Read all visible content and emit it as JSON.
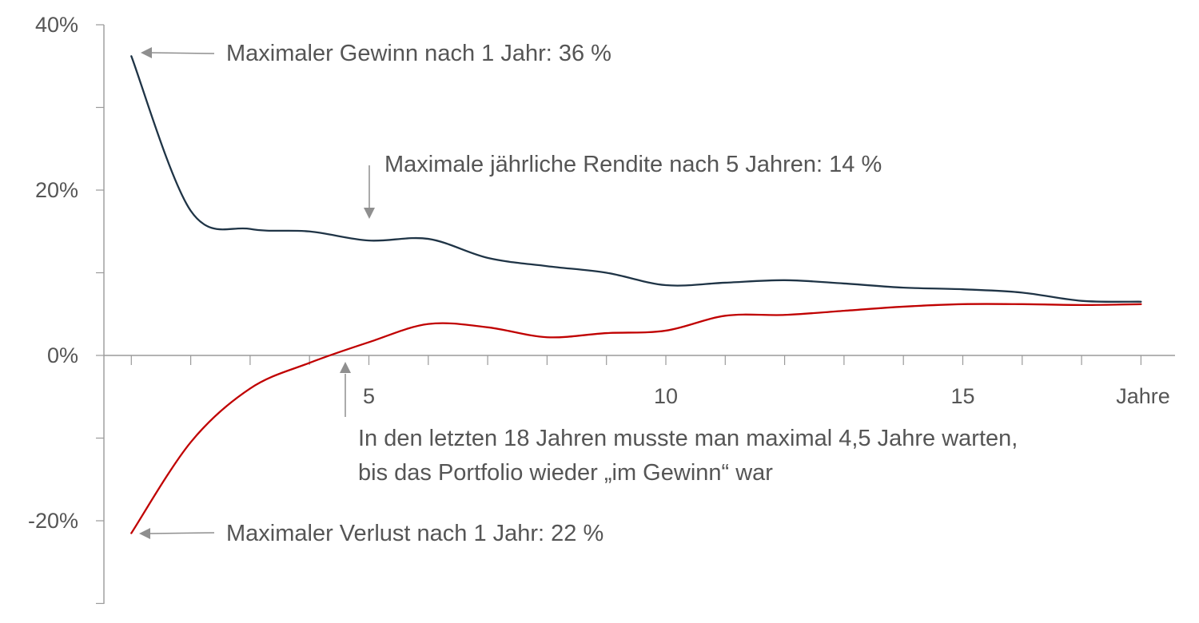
{
  "chart_data": {
    "type": "line",
    "title": "",
    "xlabel": "Jahre",
    "ylabel": "",
    "xlim": [
      0,
      18.4
    ],
    "ylim": [
      -30,
      40
    ],
    "x_ticks": [
      5,
      10,
      15
    ],
    "x_tick_labels": [
      "5",
      "10",
      "15"
    ],
    "y_ticks": [
      40,
      20,
      0,
      -20
    ],
    "y_tick_labels": [
      "40%",
      "20%",
      "0%",
      "-20%"
    ],
    "grid": false,
    "legend": "none",
    "series": [
      {
        "color": "#1f3446",
        "x": [
          1,
          2,
          3,
          4,
          5,
          6,
          7,
          8,
          9,
          10,
          11,
          12,
          13,
          14,
          15,
          16,
          17,
          18
        ],
        "y": [
          36.2,
          17.5,
          15.3,
          15.0,
          13.9,
          14.1,
          11.8,
          10.8,
          10.0,
          8.5,
          8.8,
          9.1,
          8.7,
          8.2,
          8.0,
          7.6,
          6.6,
          6.5
        ]
      },
      {
        "color": "#c00000",
        "x": [
          1,
          2,
          3,
          4,
          5,
          6,
          7,
          8,
          9,
          10,
          11,
          12,
          13,
          14,
          15,
          16,
          17,
          18
        ],
        "y": [
          -21.5,
          -10.5,
          -4.0,
          -0.9,
          1.6,
          3.8,
          3.4,
          2.2,
          2.7,
          3.0,
          4.8,
          4.9,
          5.4,
          5.9,
          6.2,
          6.2,
          6.1,
          6.2
        ]
      }
    ],
    "annotations": [
      {
        "id": "max-gain",
        "text": "Maximaler Gewinn nach 1 Jahr: 36 %"
      },
      {
        "id": "max-return-5y",
        "text": "Maximale jährliche Rendite nach 5 Jahren: 14 %"
      },
      {
        "id": "wait-time",
        "lines": [
          "In den letzten 18 Jahren musste man maximal 4,5  Jahre warten,",
          "bis das Portfolio wieder „im Gewinn“ war"
        ]
      },
      {
        "id": "max-loss",
        "text": "Maximaler Verlust nach 1 Jahr: 22 %"
      }
    ]
  }
}
